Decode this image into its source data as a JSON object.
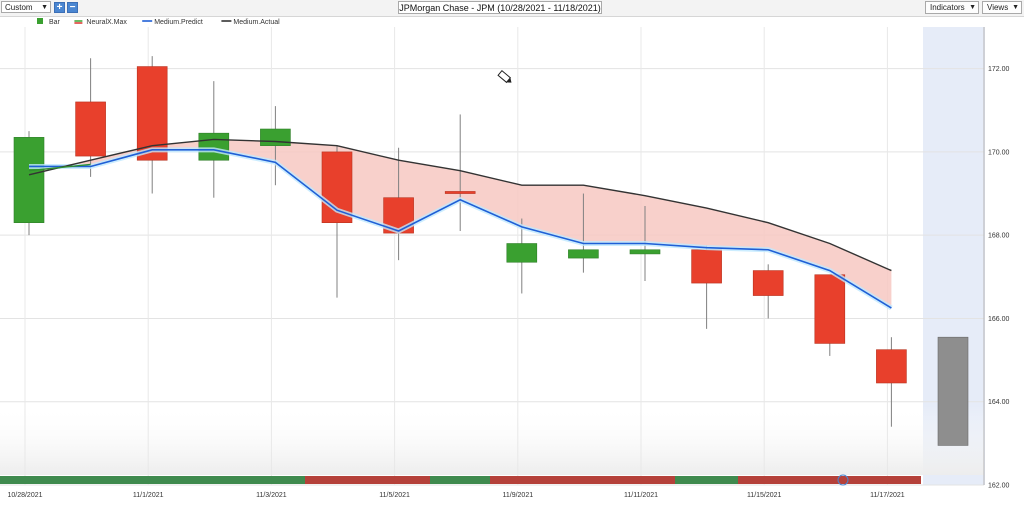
{
  "toolbar": {
    "preset_label": "Custom",
    "add_icon": "plus-icon",
    "remove_icon": "minus-icon",
    "chart_title": "JPMorgan Chase - JPM (10/28/2021 - 11/18/2021)",
    "indicators_label": "Indicators",
    "views_label": "Views"
  },
  "legend": [
    {
      "label": "Bar",
      "color": "#3aa030"
    },
    {
      "label": "NeuralX.Max",
      "color": "#d9342b"
    },
    {
      "label": "Medium.Predict",
      "color": "#1f5fd6"
    },
    {
      "label": "Medium.Actual",
      "color": "#333333"
    }
  ],
  "colors": {
    "up": "#3aa030",
    "down": "#e8402c",
    "predict": "#1f5fd6",
    "actual": "#333333",
    "band": "#f7c8c2",
    "future_bar": "#8e8e8e",
    "future_zone": "#e6ecf8"
  },
  "chart_data": {
    "type": "candlestick",
    "ylim": [
      162,
      173
    ],
    "yticks": [
      "172.00",
      "170.00",
      "168.00",
      "166.00",
      "164.00",
      "162.00"
    ],
    "y_axis_side": "right",
    "grid": true,
    "legend_position": "top-left",
    "x_tick_labels": [
      "10/28/2021",
      "11/1/2021",
      "11/3/2021",
      "11/5/2021",
      "11/9/2021",
      "11/11/2021",
      "11/15/2021",
      "11/17/2021"
    ],
    "candles": [
      {
        "date": "10/28/2021",
        "open": 168.3,
        "high": 170.5,
        "low": 168.0,
        "close": 170.35
      },
      {
        "date": "10/29/2021",
        "open": 171.2,
        "high": 172.25,
        "low": 169.4,
        "close": 169.9
      },
      {
        "date": "11/1/2021",
        "open": 172.05,
        "high": 172.3,
        "low": 169.0,
        "close": 169.8
      },
      {
        "date": "11/2/2021",
        "open": 169.8,
        "high": 171.7,
        "low": 168.9,
        "close": 170.45
      },
      {
        "date": "11/3/2021",
        "open": 170.15,
        "high": 171.1,
        "low": 169.2,
        "close": 170.55
      },
      {
        "date": "11/4/2021",
        "open": 170.0,
        "high": 170.15,
        "low": 166.5,
        "close": 168.3
      },
      {
        "date": "11/5/2021",
        "open": 168.9,
        "high": 170.1,
        "low": 167.4,
        "close": 168.05
      },
      {
        "date": "11/8/2021",
        "open": 169.05,
        "high": 170.9,
        "low": 168.1,
        "close": 169.0
      },
      {
        "date": "11/9/2021",
        "open": 167.35,
        "high": 168.4,
        "low": 166.6,
        "close": 167.8
      },
      {
        "date": "11/10/2021",
        "open": 167.45,
        "high": 169.0,
        "low": 167.1,
        "close": 167.65
      },
      {
        "date": "11/11/2021",
        "open": 167.55,
        "high": 168.7,
        "low": 166.9,
        "close": 167.65
      },
      {
        "date": "11/12/2021",
        "open": 167.65,
        "high": 167.75,
        "low": 165.75,
        "close": 166.85
      },
      {
        "date": "11/15/2021",
        "open": 167.15,
        "high": 167.3,
        "low": 166.0,
        "close": 166.55
      },
      {
        "date": "11/16/2021",
        "open": 167.05,
        "high": 167.05,
        "low": 165.1,
        "close": 165.4
      },
      {
        "date": "11/17/2021",
        "open": 165.25,
        "high": 165.55,
        "low": 163.4,
        "close": 164.45
      }
    ],
    "future_bar": {
      "date": "11/18/2021",
      "top": 165.55,
      "bottom": 162.95
    },
    "series": [
      {
        "name": "Medium.Predict",
        "values": [
          169.65,
          169.65,
          170.05,
          170.05,
          169.75,
          168.6,
          168.1,
          168.85,
          168.2,
          167.8,
          167.8,
          167.7,
          167.65,
          167.15,
          166.25
        ]
      },
      {
        "name": "Medium.Actual",
        "values": [
          169.45,
          169.8,
          170.15,
          170.3,
          170.25,
          170.15,
          169.8,
          169.55,
          169.2,
          169.2,
          168.95,
          168.65,
          168.3,
          167.8,
          167.15
        ]
      },
      {
        "name": "NeuralX.Max",
        "values": [
          169.55,
          169.7,
          null,
          null,
          null,
          null,
          null,
          null,
          null,
          null,
          null,
          null,
          null,
          null,
          null
        ]
      }
    ]
  }
}
